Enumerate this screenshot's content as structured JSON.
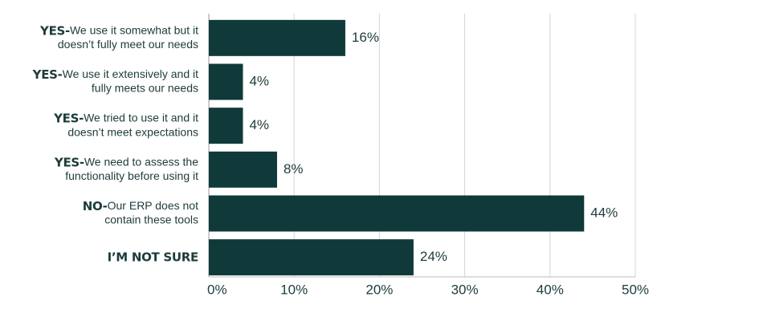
{
  "chart_data": {
    "type": "barh",
    "categories": [
      {
        "prefix": "YES-",
        "lines": [
          "We use it somewhat but it",
          "doesn’t fully meet our needs"
        ]
      },
      {
        "prefix": "YES-",
        "lines": [
          "We use it extensively and it",
          "fully meets our needs"
        ]
      },
      {
        "prefix": "YES-",
        "lines": [
          "We tried to use it and it",
          "doesn’t meet expectations"
        ]
      },
      {
        "prefix": "YES-",
        "lines": [
          "We need to assess the",
          "functionality before using it"
        ]
      },
      {
        "prefix": "NO-",
        "lines": [
          "Our ERP does not",
          "contain these tools"
        ]
      },
      {
        "prefix": "I’M NOT SURE",
        "lines": []
      }
    ],
    "values": [
      16,
      4,
      4,
      8,
      44,
      24
    ],
    "value_labels": [
      "16%",
      "4%",
      "4%",
      "8%",
      "44%",
      "24%"
    ],
    "color": "#10393a",
    "xlim": [
      0,
      50
    ],
    "xticks": [
      {
        "value": 0,
        "label": "0%"
      },
      {
        "value": 10,
        "label": "10%"
      },
      {
        "value": 20,
        "label": "20%"
      },
      {
        "value": 30,
        "label": "30%"
      },
      {
        "value": 40,
        "label": "40%"
      },
      {
        "value": 50,
        "label": "50%"
      }
    ],
    "grid": true
  }
}
